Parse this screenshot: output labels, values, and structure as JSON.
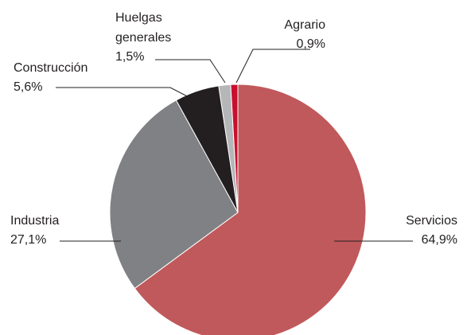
{
  "chart_data": {
    "type": "pie",
    "categories": [
      "Servicios",
      "Industria",
      "Construcción",
      "Huelgas generales",
      "Agrario"
    ],
    "values": [
      64.9,
      27.1,
      5.6,
      1.5,
      0.9
    ],
    "value_labels": [
      "64,9%",
      "27,1%",
      "5,6%",
      "1,5%",
      "0,9%"
    ],
    "colors": [
      "#c0595b",
      "#808184",
      "#231f20",
      "#b5b6b8",
      "#c8102e"
    ]
  }
}
